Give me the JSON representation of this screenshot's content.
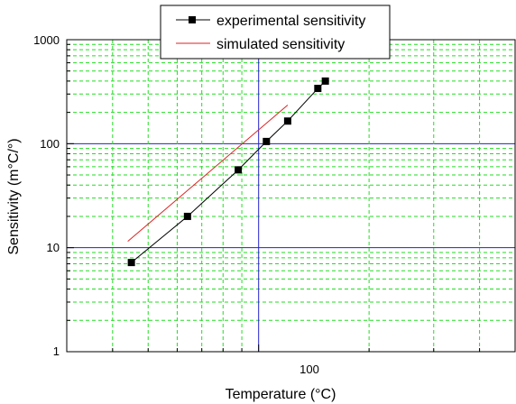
{
  "chart_data": {
    "type": "line",
    "xlabel": "Temperature (°C)",
    "ylabel": "Sensitivity (m°C/°)",
    "x_scale": "log",
    "y_scale": "log",
    "xlim": [
      30,
      500
    ],
    "ylim": [
      1,
      1000
    ],
    "x_tick_labels": [
      "100"
    ],
    "y_tick_labels": [
      "1",
      "10",
      "100",
      "1000"
    ],
    "grid": true,
    "legend_position": "top",
    "colors": {
      "grid_minor": "#22dd22",
      "grid_major": "#2222cc",
      "experimental": "#000000",
      "simulated": "#dd2222"
    },
    "series": [
      {
        "name": "experimental sensitivity",
        "marker": "square",
        "x": [
          45,
          64,
          88,
          105,
          120,
          145,
          152
        ],
        "y": [
          7.2,
          20,
          56,
          105,
          165,
          340,
          400
        ]
      },
      {
        "name": "simulated sensitivity",
        "marker": "none",
        "x": [
          44,
          120
        ],
        "y": [
          11.5,
          235
        ]
      }
    ]
  }
}
